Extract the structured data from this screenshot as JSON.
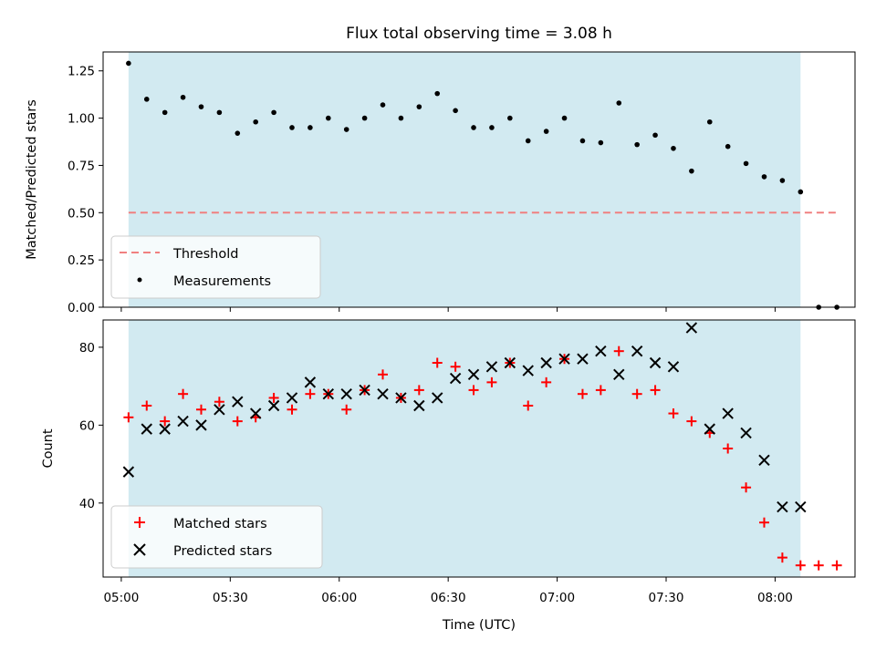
{
  "chart_data": [
    {
      "type": "scatter",
      "title": "Flux total observing time = 3.08 h",
      "xlabel": "",
      "ylabel": "Matched/Predicted stars",
      "ylim": [
        0,
        1.35
      ],
      "yticks": [
        "0.00",
        "0.25",
        "0.50",
        "0.75",
        "1.00",
        "1.25"
      ],
      "ytick_values": [
        0,
        0.25,
        0.5,
        0.75,
        1.0,
        1.25
      ],
      "shaded_interval": [
        "05:02",
        "08:07"
      ],
      "shade_color": "#add8e6",
      "legend_position": "lower-left",
      "threshold": {
        "name": "Threshold",
        "value": 0.5,
        "x_range": [
          "05:02",
          "08:17"
        ],
        "color": "#f08080",
        "style": "dashed"
      },
      "series": [
        {
          "name": "Measurements",
          "marker": "dot",
          "color": "#000000",
          "points": [
            [
              "05:02",
              1.29
            ],
            [
              "05:07",
              1.1
            ],
            [
              "05:12",
              1.03
            ],
            [
              "05:17",
              1.11
            ],
            [
              "05:22",
              1.06
            ],
            [
              "05:27",
              1.03
            ],
            [
              "05:32",
              0.92
            ],
            [
              "05:37",
              0.98
            ],
            [
              "05:42",
              1.03
            ],
            [
              "05:47",
              0.95
            ],
            [
              "05:52",
              0.95
            ],
            [
              "05:57",
              1.0
            ],
            [
              "06:02",
              0.94
            ],
            [
              "06:07",
              1.0
            ],
            [
              "06:12",
              1.07
            ],
            [
              "06:17",
              1.0
            ],
            [
              "06:22",
              1.06
            ],
            [
              "06:27",
              1.13
            ],
            [
              "06:32",
              1.04
            ],
            [
              "06:37",
              0.95
            ],
            [
              "06:42",
              0.95
            ],
            [
              "06:47",
              1.0
            ],
            [
              "06:52",
              0.88
            ],
            [
              "06:57",
              0.93
            ],
            [
              "07:02",
              1.0
            ],
            [
              "07:07",
              0.88
            ],
            [
              "07:12",
              0.87
            ],
            [
              "07:17",
              1.08
            ],
            [
              "07:22",
              0.86
            ],
            [
              "07:27",
              0.91
            ],
            [
              "07:32",
              0.84
            ],
            [
              "07:37",
              0.72
            ],
            [
              "07:42",
              0.98
            ],
            [
              "07:47",
              0.85
            ],
            [
              "07:52",
              0.76
            ],
            [
              "07:57",
              0.69
            ],
            [
              "08:02",
              0.67
            ],
            [
              "08:07",
              0.61
            ],
            [
              "08:12",
              0.0
            ],
            [
              "08:17",
              0.0
            ]
          ]
        }
      ]
    },
    {
      "type": "scatter",
      "title": "",
      "xlabel": "Time (UTC)",
      "ylabel": "Count",
      "ylim": [
        21,
        87
      ],
      "yticks": [
        "40",
        "60",
        "80"
      ],
      "ytick_values": [
        40,
        60,
        80
      ],
      "xlim": [
        "04:55",
        "08:22"
      ],
      "xticks": [
        "05:00",
        "05:30",
        "06:00",
        "06:30",
        "07:00",
        "07:30",
        "08:00"
      ],
      "shaded_interval": [
        "05:02",
        "08:07"
      ],
      "shade_color": "#add8e6",
      "legend_position": "lower-left",
      "series": [
        {
          "name": "Matched stars",
          "marker": "plus",
          "color": "#ff0000",
          "points": [
            [
              "05:02",
              62
            ],
            [
              "05:07",
              65
            ],
            [
              "05:12",
              61
            ],
            [
              "05:17",
              68
            ],
            [
              "05:22",
              64
            ],
            [
              "05:27",
              66
            ],
            [
              "05:32",
              61
            ],
            [
              "05:37",
              62
            ],
            [
              "05:42",
              67
            ],
            [
              "05:47",
              64
            ],
            [
              "05:52",
              68
            ],
            [
              "05:57",
              68
            ],
            [
              "06:02",
              64
            ],
            [
              "06:07",
              69
            ],
            [
              "06:12",
              73
            ],
            [
              "06:17",
              67
            ],
            [
              "06:22",
              69
            ],
            [
              "06:27",
              76
            ],
            [
              "06:32",
              75
            ],
            [
              "06:37",
              69
            ],
            [
              "06:42",
              71
            ],
            [
              "06:47",
              76
            ],
            [
              "06:52",
              65
            ],
            [
              "06:57",
              71
            ],
            [
              "07:02",
              77
            ],
            [
              "07:07",
              68
            ],
            [
              "07:12",
              69
            ],
            [
              "07:17",
              79
            ],
            [
              "07:22",
              68
            ],
            [
              "07:27",
              69
            ],
            [
              "07:32",
              63
            ],
            [
              "07:37",
              61
            ],
            [
              "07:42",
              58
            ],
            [
              "07:47",
              54
            ],
            [
              "07:52",
              44
            ],
            [
              "07:57",
              35
            ],
            [
              "08:02",
              26
            ],
            [
              "08:07",
              24
            ],
            [
              "08:12",
              24
            ],
            [
              "08:17",
              24
            ]
          ]
        },
        {
          "name": "Predicted stars",
          "marker": "x",
          "color": "#000000",
          "points": [
            [
              "05:02",
              48
            ],
            [
              "05:07",
              59
            ],
            [
              "05:12",
              59
            ],
            [
              "05:17",
              61
            ],
            [
              "05:22",
              60
            ],
            [
              "05:27",
              64
            ],
            [
              "05:32",
              66
            ],
            [
              "05:37",
              63
            ],
            [
              "05:42",
              65
            ],
            [
              "05:47",
              67
            ],
            [
              "05:52",
              71
            ],
            [
              "05:57",
              68
            ],
            [
              "06:02",
              68
            ],
            [
              "06:07",
              69
            ],
            [
              "06:12",
              68
            ],
            [
              "06:17",
              67
            ],
            [
              "06:22",
              65
            ],
            [
              "06:27",
              67
            ],
            [
              "06:32",
              72
            ],
            [
              "06:37",
              73
            ],
            [
              "06:42",
              75
            ],
            [
              "06:47",
              76
            ],
            [
              "06:52",
              74
            ],
            [
              "06:57",
              76
            ],
            [
              "07:02",
              77
            ],
            [
              "07:07",
              77
            ],
            [
              "07:12",
              79
            ],
            [
              "07:17",
              73
            ],
            [
              "07:22",
              79
            ],
            [
              "07:27",
              76
            ],
            [
              "07:32",
              75
            ],
            [
              "07:37",
              85
            ],
            [
              "07:42",
              59
            ],
            [
              "07:47",
              63
            ],
            [
              "07:52",
              58
            ],
            [
              "07:57",
              51
            ],
            [
              "08:02",
              39
            ],
            [
              "08:07",
              39
            ]
          ]
        }
      ]
    }
  ]
}
